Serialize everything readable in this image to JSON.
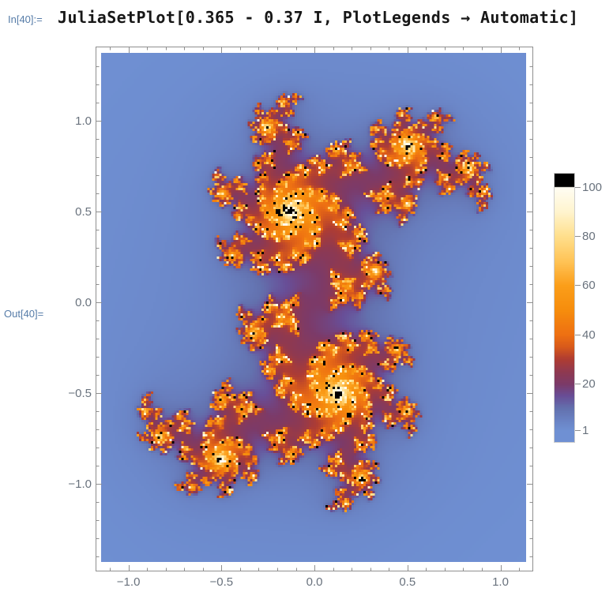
{
  "notebook": {
    "in_label": "In[40]:=",
    "out_label": "Out[40]=",
    "code": "JuliaSetPlot[0.365 - 0.37 I, PlotLegends → Automatic]"
  },
  "chart_data": {
    "type": "heatmap",
    "title": "",
    "xlabel": "",
    "ylabel": "",
    "description": "Julia set escape-time plot of z -> z^2 + c",
    "c": {
      "re": 0.365,
      "im": -0.37,
      "text": "0.365 - 0.37 I"
    },
    "max_iterations": 100,
    "x_range": [
      -1.147,
      1.138
    ],
    "y_range": [
      -1.43,
      1.374
    ],
    "x_tick_values": [
      -1.0,
      -0.5,
      0.0,
      0.5,
      1.0
    ],
    "x_tick_labels": [
      "−1.0",
      "−0.5",
      "0.0",
      "0.5",
      "1.0"
    ],
    "y_tick_values": [
      1.0,
      0.5,
      0.0,
      -0.5,
      -1.0
    ],
    "y_tick_labels": [
      "1.0",
      "0.5",
      "0.0",
      "−0.5",
      "−1.0"
    ],
    "minor_tick_step": 0.1,
    "grid": false,
    "legend": {
      "position": "right",
      "min": 1,
      "max": 100,
      "tick_values": [
        100,
        80,
        60,
        40,
        20,
        1
      ],
      "tick_labels": [
        "100",
        "80",
        "60",
        "40",
        "20",
        "1"
      ],
      "overflow_color": "#000000"
    },
    "colormap": [
      [
        1,
        "#6F90D3"
      ],
      [
        5,
        "#6A83C4"
      ],
      [
        10,
        "#6371AE"
      ],
      [
        15,
        "#684E97"
      ],
      [
        20,
        "#7C3A68"
      ],
      [
        25,
        "#8F3950"
      ],
      [
        30,
        "#AE3C33"
      ],
      [
        35,
        "#D85A1B"
      ],
      [
        40,
        "#EE7012"
      ],
      [
        50,
        "#F68D0D"
      ],
      [
        60,
        "#FB9E19"
      ],
      [
        70,
        "#FFC457"
      ],
      [
        80,
        "#FFDF8C"
      ],
      [
        90,
        "#FFF4CE"
      ],
      [
        100,
        "#FFFDF4"
      ]
    ],
    "interior_color": "#000000"
  },
  "style": {
    "background": "#ffffff",
    "cell_label_color": "#567ca8",
    "code_color": "#171717",
    "frame_color": "#8f8f8f",
    "tick_color": "#8f8f8f",
    "tick_label_color": "#69727d",
    "legend_border_color": "#cccccc"
  }
}
